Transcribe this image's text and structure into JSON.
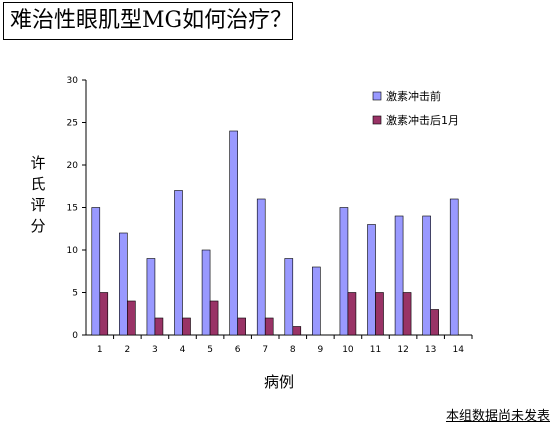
{
  "title": "难治性眼肌型MG如何治疗？",
  "footnote": "本组数据尚未发表",
  "chart_data": {
    "type": "bar",
    "categories": [
      "1",
      "2",
      "3",
      "4",
      "5",
      "6",
      "7",
      "8",
      "9",
      "10",
      "11",
      "12",
      "13",
      "14"
    ],
    "series": [
      {
        "name": "激素冲击前",
        "color": "#9999ff",
        "values": [
          15,
          12,
          9,
          17,
          10,
          24,
          16,
          9,
          8,
          15,
          13,
          14,
          14,
          16
        ]
      },
      {
        "name": "激素冲击后1月",
        "color": "#993366",
        "values": [
          5,
          4,
          2,
          2,
          4,
          2,
          2,
          1,
          0,
          5,
          5,
          5,
          3,
          0
        ]
      }
    ],
    "ylabel": "许氏评分",
    "xlabel": "病例",
    "ylim": [
      0,
      30
    ],
    "yticks": [
      0,
      5,
      10,
      15,
      20,
      25,
      30
    ],
    "grid": false,
    "legend": "top-right"
  }
}
